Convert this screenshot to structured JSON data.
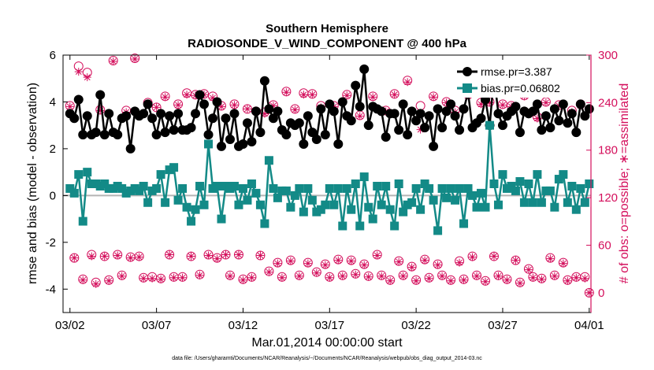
{
  "chart_data": {
    "type": "line",
    "title": "Southern Hemisphere",
    "subtitle": "RADIOSONDE_V_WIND_COMPONENT @ 400 hPa",
    "xlabel": "Mar.01,2014 00:00:00 start",
    "ylabel": "rmse and bias (model - observation)",
    "y2label": "# of obs: o=possible; ∗=assimilated",
    "footnote": "data file: /Users/gharamti/Documents/NCAR/Reanalysis/~/Documents/NCAR/Reanalysis/webpub/obs_diag_output_2014-03.nc",
    "xlim": [
      0.6,
      31.1
    ],
    "ylim": [
      -5,
      6
    ],
    "y2lim": [
      -25,
      300
    ],
    "x_ticks": [
      1.0,
      6.0,
      11.0,
      16.0,
      21.0,
      26.0,
      31.0
    ],
    "x_tick_labels": [
      "03/02",
      "03/07",
      "03/12",
      "03/17",
      "03/22",
      "03/27",
      "04/01"
    ],
    "y_ticks": [
      -4,
      -2,
      0,
      2,
      4,
      6
    ],
    "y2_ticks": [
      0,
      60,
      120,
      180,
      240,
      300
    ],
    "zero_line": 0,
    "grid": false,
    "legend_position": "top-right",
    "colors": {
      "rmse": "#000000",
      "bias": "#138a87",
      "counts": "#d40f5c",
      "zero_line": "#b4b4b4",
      "right_axis": "#d40f5c"
    },
    "x": [
      1.0,
      1.25,
      1.5,
      1.75,
      2.0,
      2.25,
      2.5,
      2.75,
      3.0,
      3.25,
      3.5,
      3.75,
      4.0,
      4.25,
      4.5,
      4.75,
      5.0,
      5.25,
      5.5,
      5.75,
      6.0,
      6.25,
      6.5,
      6.75,
      7.0,
      7.25,
      7.5,
      7.75,
      8.0,
      8.25,
      8.5,
      8.75,
      9.0,
      9.25,
      9.5,
      9.75,
      10.0,
      10.25,
      10.5,
      10.75,
      11.0,
      11.25,
      11.5,
      11.75,
      12.0,
      12.25,
      12.5,
      12.75,
      13.0,
      13.25,
      13.5,
      13.75,
      14.0,
      14.25,
      14.5,
      14.75,
      15.0,
      15.25,
      15.5,
      15.75,
      16.0,
      16.25,
      16.5,
      16.75,
      17.0,
      17.25,
      17.5,
      17.75,
      18.0,
      18.25,
      18.5,
      18.75,
      19.0,
      19.25,
      19.5,
      19.75,
      20.0,
      20.25,
      20.5,
      20.75,
      21.0,
      21.25,
      21.5,
      21.75,
      22.0,
      22.25,
      22.5,
      22.75,
      23.0,
      23.25,
      23.5,
      23.75,
      24.0,
      24.25,
      24.5,
      24.75,
      25.0,
      25.25,
      25.5,
      25.75,
      26.0,
      26.25,
      26.5,
      26.75,
      27.0,
      27.25,
      27.5,
      27.75,
      28.0,
      28.25,
      28.5,
      28.75,
      29.0,
      29.25,
      29.5,
      29.75,
      30.0,
      30.25,
      30.5,
      30.75,
      31.0
    ],
    "series": [
      {
        "name": "rmse.pr=3.387",
        "axis": "left",
        "values": [
          3.5,
          3.3,
          4.1,
          2.6,
          3.4,
          2.6,
          2.7,
          4.3,
          2.6,
          3.5,
          2.7,
          2.6,
          3.3,
          3.4,
          2.0,
          3.6,
          3.4,
          3.5,
          3.9,
          3.3,
          2.6,
          3.5,
          2.7,
          3.4,
          2.8,
          3.5,
          2.8,
          2.8,
          2.9,
          3.5,
          4.3,
          3.9,
          2.6,
          3.3,
          4.0,
          2.1,
          3.3,
          2.4,
          3.5,
          2.1,
          2.2,
          3.1,
          2.3,
          3.6,
          2.7,
          4.9,
          3.7,
          3.3,
          3.6,
          2.8,
          2.6,
          3.1,
          3.0,
          3.1,
          2.2,
          3.4,
          2.7,
          2.4,
          3.7,
          2.6,
          3.9,
          3.6,
          2.2,
          4.0,
          3.4,
          3.2,
          4.7,
          3.8,
          5.4,
          3.0,
          3.8,
          3.7,
          3.6,
          2.5,
          3.5,
          3.5,
          2.8,
          3.9,
          2.6,
          3.6,
          3.2,
          3.5,
          2.9,
          3.4,
          2.1,
          3.7,
          2.9,
          3.6,
          3.9,
          3.4,
          2.8,
          3.7,
          4.4,
          2.9,
          3.1,
          3.3,
          4.1,
          3.0,
          5.1,
          3.5,
          3.0,
          3.4,
          3.6,
          3.8,
          2.7,
          3.6,
          3.5,
          3.6,
          3.9,
          2.8,
          3.4,
          2.9,
          3.7,
          3.2,
          3.9,
          3.1,
          3.5,
          2.7,
          3.9,
          3.4,
          3.7
        ],
        "markers_only": false
      },
      {
        "name": "bias.pr=0.06802",
        "axis": "left",
        "values": [
          0.3,
          0.1,
          0.9,
          -1.1,
          1.0,
          0.5,
          0.5,
          0.4,
          0.5,
          0.3,
          0.3,
          0.4,
          0.3,
          0.1,
          0.2,
          0.3,
          0.2,
          0.4,
          -0.3,
          0.2,
          0.3,
          0.9,
          -0.3,
          1.1,
          1.2,
          -0.2,
          0.3,
          -0.5,
          -1.1,
          -0.6,
          0.4,
          -0.4,
          2.2,
          0.3,
          0.4,
          -1.0,
          0.4,
          0.3,
          0.4,
          -0.4,
          0.3,
          -0.2,
          0.5,
          0.1,
          -0.4,
          -1.2,
          1.5,
          0.3,
          -0.1,
          0.2,
          0.2,
          -0.5,
          0.0,
          0.3,
          -0.7,
          0.3,
          -0.2,
          -0.7,
          -0.6,
          -0.4,
          0.3,
          -0.4,
          0.3,
          -1.3,
          0.3,
          -0.6,
          0.5,
          -1.3,
          0.8,
          -0.5,
          -1.0,
          0.4,
          -0.4,
          0.4,
          -0.6,
          -1.3,
          0.5,
          -0.7,
          -0.4,
          -0.3,
          0.3,
          -0.6,
          0.5,
          0.3,
          -0.2,
          -1.5,
          0.3,
          -0.1,
          0.3,
          -0.2,
          0.3,
          -1.2,
          0.3,
          0.0,
          -0.5,
          0.1,
          -0.5,
          3.0,
          0.5,
          -0.4,
          0.9,
          0.3,
          0.4,
          0.2,
          0.6,
          -0.3,
          0.5,
          -0.3,
          0.9,
          -0.3,
          0.2,
          0.2,
          -0.5,
          0.7,
          0.9,
          -0.3,
          0.4,
          -0.6,
          0.3,
          -0.3,
          0.5
        ],
        "markers_only": false
      },
      {
        "name": "possible",
        "axis": "right",
        "marker": "circle",
        "values": [
          236,
          44,
          286,
          17,
          278,
          48,
          13,
          231,
          46,
          16,
          293,
          48,
          22,
          230,
          45,
          296,
          46,
          19,
          240,
          20,
          234,
          18,
          248,
          48,
          20,
          238,
          20,
          252,
          46,
          250,
          23,
          251,
          48,
          248,
          44,
          236,
          48,
          22,
          238,
          48,
          17,
          232,
          20,
          229,
          47,
          228,
          27,
          237,
          38,
          20,
          254,
          41,
          232,
          22,
          252,
          38,
          251,
          26,
          236,
          36,
          20,
          236,
          42,
          22,
          250,
          41,
          24,
          224,
          36,
          21,
          248,
          48,
          22,
          230,
          16,
          251,
          40,
          22,
          268,
          33,
          16,
          236,
          42,
          19,
          248,
          36,
          22,
          241,
          16,
          230,
          40,
          17,
          250,
          46,
          22,
          240,
          15,
          241,
          46,
          22,
          238,
          17,
          236,
          41,
          13,
          249,
          30,
          20,
          222,
          18,
          241,
          44,
          22,
          237,
          38,
          16,
          230,
          20,
          238,
          20,
          0
        ],
        "markers_only": true
      },
      {
        "name": "assimilated",
        "axis": "right",
        "marker": "asterisk",
        "values": [
          235,
          44,
          279,
          16,
          272,
          46,
          11,
          230,
          46,
          15,
          292,
          47,
          21,
          228,
          44,
          295,
          45,
          18,
          238,
          18,
          234,
          17,
          247,
          48,
          19,
          237,
          19,
          250,
          46,
          249,
          22,
          250,
          47,
          246,
          43,
          235,
          48,
          21,
          237,
          48,
          16,
          232,
          19,
          228,
          47,
          226,
          26,
          236,
          37,
          19,
          253,
          40,
          231,
          21,
          250,
          37,
          250,
          25,
          234,
          35,
          19,
          235,
          41,
          21,
          249,
          40,
          23,
          223,
          35,
          20,
          247,
          47,
          21,
          229,
          15,
          250,
          39,
          21,
          266,
          32,
          15,
          206,
          41,
          18,
          247,
          35,
          21,
          240,
          15,
          228,
          38,
          16,
          249,
          45,
          21,
          238,
          14,
          240,
          46,
          21,
          237,
          16,
          235,
          41,
          12,
          248,
          29,
          19,
          220,
          17,
          240,
          43,
          21,
          236,
          37,
          15,
          228,
          19,
          236,
          18,
          0
        ],
        "markers_only": true
      }
    ]
  }
}
